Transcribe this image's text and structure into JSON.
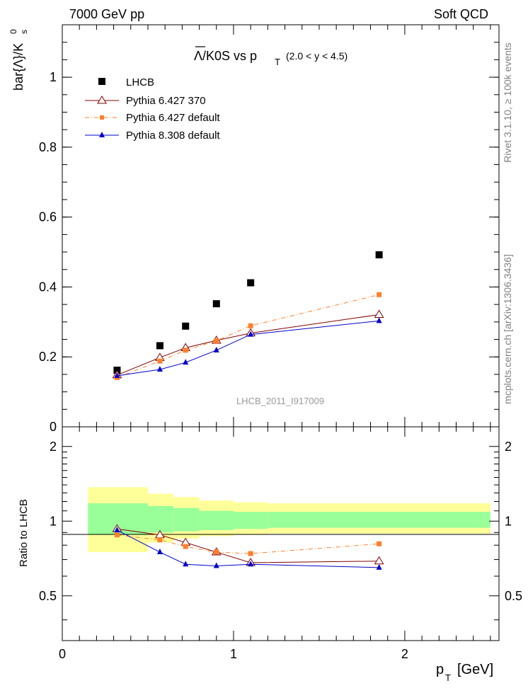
{
  "header": {
    "energy": "7000 GeV pp",
    "category": "Soft QCD",
    "side_rivet": "Rivet 3.1.10, ≥ 100k events",
    "side_site": "mcplots.cern.ch [arXiv:1306.3436]",
    "analysis_id": "LHCB_2011_I917009"
  },
  "colors": {
    "data": "#000000",
    "pythia6_370": "#800000",
    "pythia6_default": "#ff7f2a",
    "pythia8_default": "#0000cc",
    "band_inner": "#99ff99",
    "band_outer": "#ffff99"
  },
  "chart_data": [
    {
      "type": "scatter",
      "title_main": "Λ/K0S vs p",
      "title_sub": "T",
      "title_range": "(2.0 < y < 4.5)",
      "xlabel": "p",
      "xlabel_sub": "T",
      "xlabel_unit": "[GeV]",
      "ylabel": "bar{Λ}/K",
      "ylabel_sup": "0",
      "ylabel_sub": "s",
      "xlim": [
        0,
        2.55
      ],
      "ylim": [
        0,
        1.15
      ],
      "xticks": [
        0,
        1,
        2
      ],
      "xtick_labels": [
        "0",
        "1",
        "2"
      ],
      "yticks": [
        0,
        0.2,
        0.4,
        0.6,
        0.8,
        1
      ],
      "ytick_labels": [
        "0",
        "0.2",
        "0.4",
        "0.6",
        "0.8",
        "1"
      ],
      "x": [
        0.32,
        0.57,
        0.72,
        0.9,
        1.1,
        1.85
      ],
      "series": [
        {
          "key": "lhcb",
          "name": "LHCB",
          "style": "square",
          "values": [
            0.162,
            0.232,
            0.288,
            0.352,
            0.412,
            0.492
          ]
        },
        {
          "key": "p6_370",
          "name": "Pythia 6.427 370",
          "style": "open-triangle",
          "values": [
            0.148,
            0.198,
            0.226,
            0.247,
            0.268,
            0.321
          ]
        },
        {
          "key": "p6_def",
          "name": "Pythia 6.427 default",
          "style": "orange-square-dashed",
          "values": [
            0.141,
            0.188,
            0.219,
            0.246,
            0.289,
            0.378
          ]
        },
        {
          "key": "p8_def",
          "name": "Pythia 8.308 default",
          "style": "blue-triangle",
          "values": [
            0.146,
            0.164,
            0.184,
            0.219,
            0.264,
            0.303
          ]
        }
      ]
    },
    {
      "type": "line",
      "ylabel": "Ratio to LHCB",
      "xlim": [
        0,
        2.55
      ],
      "ylim": [
        0.33,
        2.4
      ],
      "yticks": [
        0.5,
        1,
        2
      ],
      "ytick_labels": [
        "0.5",
        "1",
        "2"
      ],
      "x": [
        0.32,
        0.57,
        0.72,
        0.9,
        1.1,
        1.85
      ],
      "series": [
        {
          "key": "p6_370",
          "name": "Pythia 6.427 370",
          "values": [
            0.93,
            0.88,
            0.82,
            0.75,
            0.68,
            0.69
          ]
        },
        {
          "key": "p6_def",
          "name": "Pythia 6.427 default",
          "values": [
            0.88,
            0.84,
            0.79,
            0.75,
            0.74,
            0.81
          ]
        },
        {
          "key": "p8_def",
          "name": "Pythia 8.308 default",
          "values": [
            0.92,
            0.75,
            0.67,
            0.66,
            0.67,
            0.65
          ]
        }
      ],
      "bands": {
        "bins": [
          [
            0.15,
            0.5
          ],
          [
            0.5,
            0.65
          ],
          [
            0.65,
            0.8
          ],
          [
            0.8,
            1.0
          ],
          [
            1.0,
            1.2
          ],
          [
            1.2,
            2.5
          ]
        ],
        "inner": [
          [
            0.88,
            1.18
          ],
          [
            0.9,
            1.15
          ],
          [
            0.91,
            1.13
          ],
          [
            0.92,
            1.1
          ],
          [
            0.93,
            1.09
          ],
          [
            0.94,
            1.09
          ]
        ],
        "outer": [
          [
            0.75,
            1.37
          ],
          [
            0.82,
            1.29
          ],
          [
            0.85,
            1.25
          ],
          [
            0.87,
            1.21
          ],
          [
            0.88,
            1.19
          ],
          [
            0.89,
            1.18
          ]
        ]
      }
    }
  ]
}
